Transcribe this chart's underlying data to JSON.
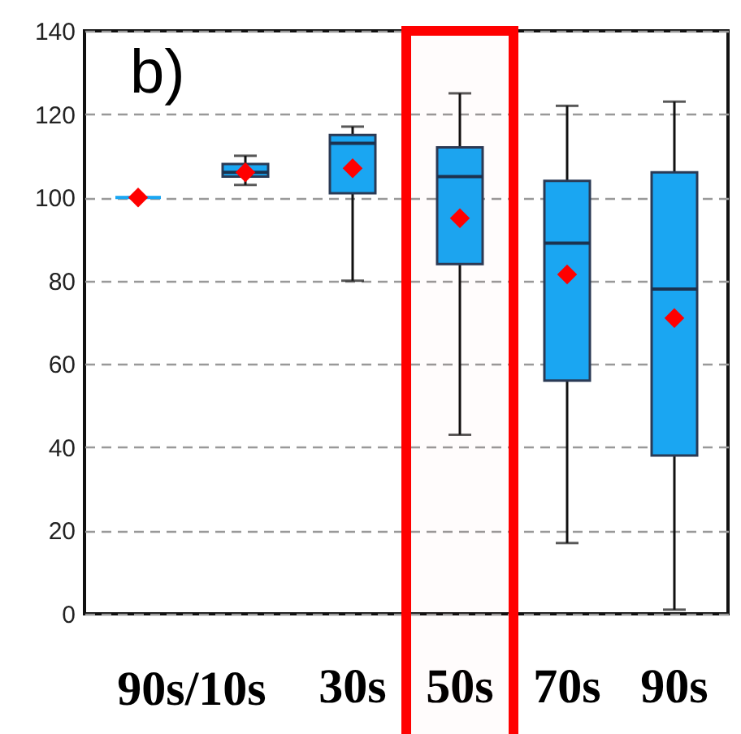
{
  "chart_data": {
    "type": "box",
    "categories": [
      null,
      null,
      "30s",
      "50s",
      "70s",
      "90s"
    ],
    "ylim": [
      0,
      140
    ],
    "yticks": [
      0,
      20,
      40,
      60,
      80,
      100,
      120,
      140
    ],
    "grid": "y",
    "marker": "diamond",
    "annotations": [
      "b)",
      "90s/10s"
    ],
    "bands": [
      {
        "axis": "x",
        "from": "50s",
        "to": "50s",
        "color": "#ff0000"
      }
    ],
    "series": [
      {
        "color": "#1aa6f2",
        "boxes": [
          {
            "low": 100,
            "q1": 100,
            "median": 100,
            "q3": 100,
            "high": 100,
            "mean": 100
          },
          {
            "low": 103,
            "q1": 105,
            "median": 106,
            "q3": 108,
            "high": 110,
            "mean": 106
          },
          {
            "low": 80,
            "q1": 101,
            "median": 113,
            "q3": 115,
            "high": 117,
            "mean": 107
          },
          {
            "low": 43,
            "q1": 84,
            "median": 105,
            "q3": 112,
            "high": 125,
            "mean": 95
          },
          {
            "low": 17,
            "q1": 56,
            "median": 89,
            "q3": 104,
            "high": 122,
            "mean": 81.5
          },
          {
            "low": 1,
            "q1": 38,
            "median": 78,
            "q3": 106,
            "high": 123,
            "mean": 71
          }
        ]
      }
    ]
  }
}
